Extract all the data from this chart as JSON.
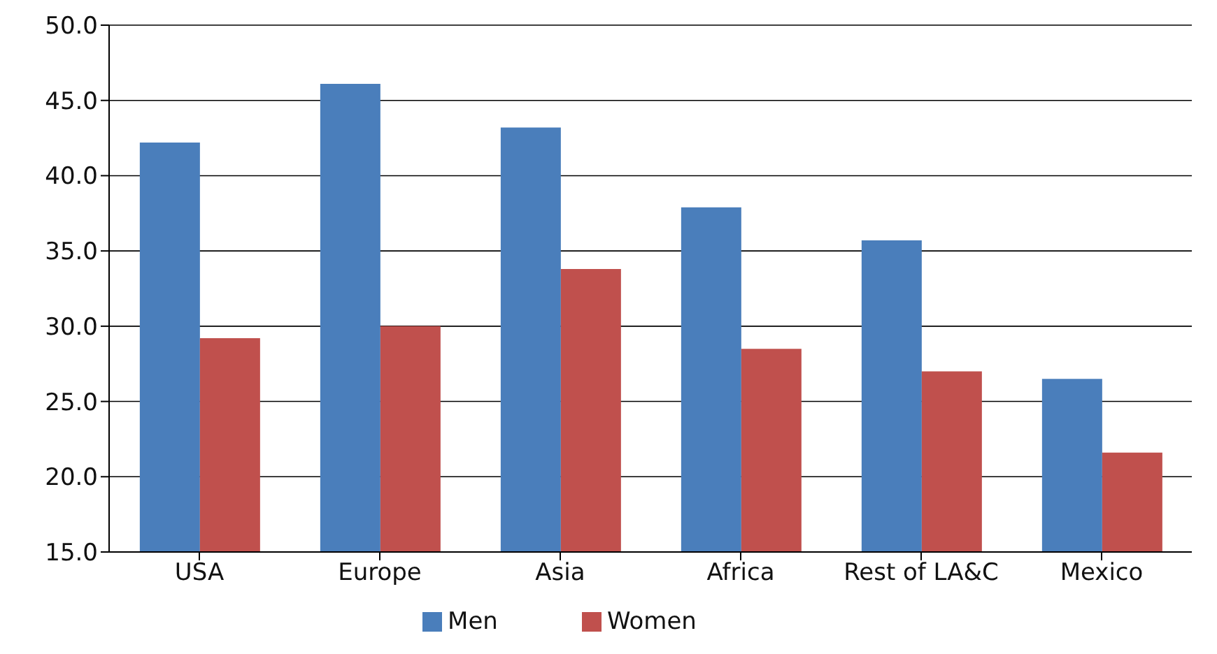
{
  "chart_data": {
    "type": "bar",
    "categories": [
      "USA",
      "Europe",
      "Asia",
      "Africa",
      "Rest of LA&C",
      "Mexico"
    ],
    "series": [
      {
        "name": "Men",
        "color": "#4a7ebb",
        "values": [
          42.2,
          46.1,
          43.2,
          37.9,
          35.7,
          26.5
        ]
      },
      {
        "name": "Women",
        "color": "#c0504d",
        "values": [
          29.2,
          30.0,
          33.8,
          28.5,
          27.0,
          21.6
        ]
      }
    ],
    "ylim": [
      15,
      50
    ],
    "yticks": [
      {
        "value": 15,
        "label": "15.0"
      },
      {
        "value": 20,
        "label": "20.0"
      },
      {
        "value": 25,
        "label": "25.0"
      },
      {
        "value": 30,
        "label": "30.0"
      },
      {
        "value": 35,
        "label": "35.0"
      },
      {
        "value": 40,
        "label": "40.0"
      },
      {
        "value": 45,
        "label": "45.0"
      },
      {
        "value": 50,
        "label": "50.0"
      }
    ],
    "grid": "y",
    "legend": "bottom"
  }
}
